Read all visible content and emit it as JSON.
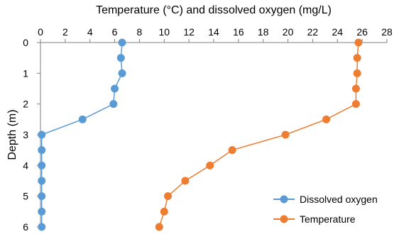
{
  "chart_data": {
    "type": "line",
    "title": "",
    "xlabel": "Temperature (°C) and dissolved oxygen (mg/L)",
    "ylabel": "Depth (m)",
    "x_axis_position": "top",
    "y_axis_reversed": true,
    "xlim": [
      0,
      28
    ],
    "ylim": [
      0,
      6
    ],
    "x_ticks": [
      0,
      2,
      4,
      6,
      8,
      10,
      12,
      14,
      16,
      18,
      20,
      22,
      24,
      26,
      28
    ],
    "y_ticks": [
      0,
      1,
      2,
      3,
      4,
      5,
      6
    ],
    "grid": false,
    "legend_position": "bottom-right",
    "series": [
      {
        "name": "Dissolved oxygen",
        "color": "#5b9bd5",
        "x": [
          6.6,
          6.5,
          6.6,
          6.0,
          5.9,
          3.4,
          0.1,
          0.1,
          0.1,
          0.1,
          0.1,
          0.1,
          0.1
        ],
        "y": [
          0,
          0.5,
          1,
          1.5,
          2,
          2.5,
          3,
          3.5,
          4,
          4.5,
          5,
          5.5,
          6
        ]
      },
      {
        "name": "Temperature",
        "color": "#ed7d31",
        "x": [
          25.7,
          25.6,
          25.6,
          25.5,
          25.5,
          23.1,
          19.8,
          15.5,
          13.7,
          11.7,
          10.3,
          10.0,
          9.6
        ],
        "y": [
          0,
          0.5,
          1,
          1.5,
          2,
          2.5,
          3,
          3.5,
          4,
          4.5,
          5,
          5.5,
          6
        ]
      }
    ]
  }
}
